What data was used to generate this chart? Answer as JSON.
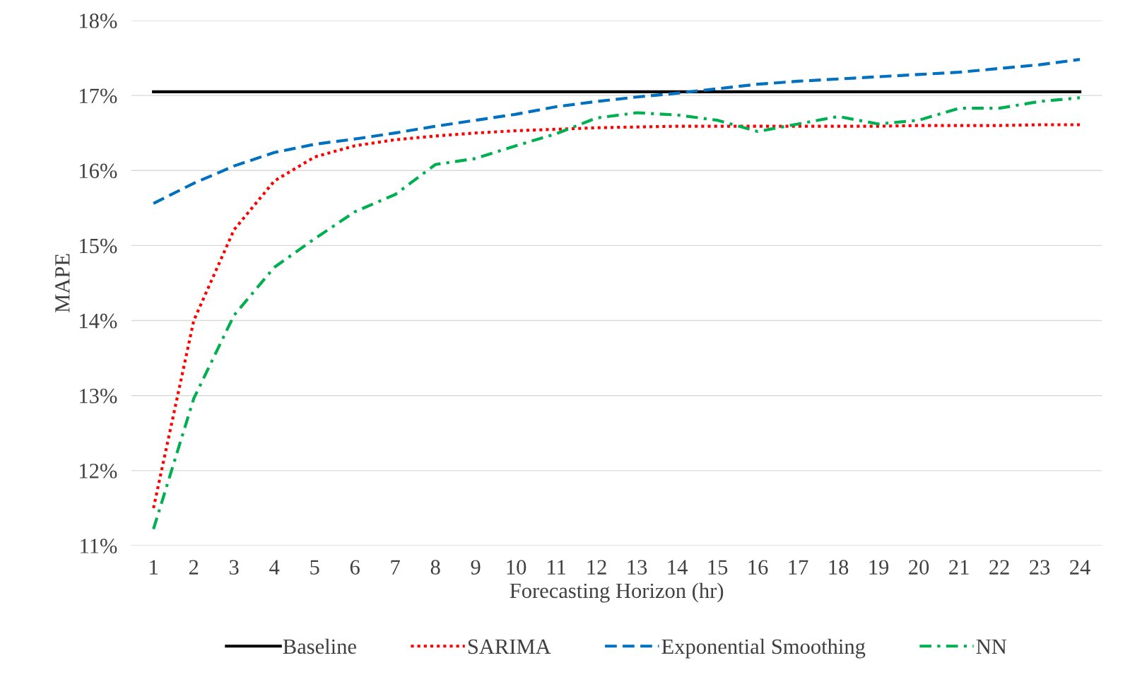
{
  "chart_data": {
    "type": "line",
    "xlabel": "Forecasting Horizon (hr)",
    "ylabel": "MAPE",
    "categories": [
      "1",
      "2",
      "3",
      "4",
      "5",
      "6",
      "7",
      "8",
      "9",
      "10",
      "11",
      "12",
      "13",
      "14",
      "15",
      "16",
      "17",
      "18",
      "19",
      "20",
      "21",
      "22",
      "23",
      "24"
    ],
    "ylim": [
      11,
      18
    ],
    "yticks": [
      {
        "value": 11,
        "label": "11%"
      },
      {
        "value": 12,
        "label": "12%"
      },
      {
        "value": 13,
        "label": "13%"
      },
      {
        "value": 14,
        "label": "14%"
      },
      {
        "value": 15,
        "label": "15%"
      },
      {
        "value": 16,
        "label": "16%"
      },
      {
        "value": 17,
        "label": "17%"
      },
      {
        "value": 18,
        "label": "18%"
      }
    ],
    "grid": "y",
    "legend": "bottom",
    "marker": "none",
    "series": [
      {
        "name": "Baseline",
        "color": "#000000",
        "line_style": "solid",
        "values": [
          17.05,
          17.05,
          17.05,
          17.05,
          17.05,
          17.05,
          17.05,
          17.05,
          17.05,
          17.05,
          17.05,
          17.05,
          17.05,
          17.05,
          17.05,
          17.05,
          17.05,
          17.05,
          17.05,
          17.05,
          17.05,
          17.05,
          17.05,
          17.05
        ]
      },
      {
        "name": "SARIMA",
        "color": "#ff0000",
        "line_style": "dotted",
        "values": [
          11.5,
          14.0,
          15.21,
          15.86,
          16.18,
          16.33,
          16.41,
          16.46,
          16.5,
          16.53,
          16.55,
          16.57,
          16.58,
          16.59,
          16.59,
          16.59,
          16.59,
          16.59,
          16.59,
          16.6,
          16.6,
          16.6,
          16.61,
          16.61
        ]
      },
      {
        "name": "Exponential Smoothing",
        "color": "#0070c0",
        "line_style": "dashed",
        "values": [
          15.56,
          15.83,
          16.06,
          16.24,
          16.35,
          16.42,
          16.5,
          16.59,
          16.67,
          16.75,
          16.85,
          16.92,
          16.98,
          17.03,
          17.09,
          17.15,
          17.19,
          17.22,
          17.25,
          17.28,
          17.31,
          17.36,
          17.41,
          17.48
        ]
      },
      {
        "name": "NN",
        "color": "#00b050",
        "line_style": "dashdot",
        "values": [
          11.22,
          12.96,
          14.07,
          14.71,
          15.09,
          15.45,
          15.68,
          16.08,
          16.16,
          16.33,
          16.49,
          16.7,
          16.77,
          16.74,
          16.67,
          16.52,
          16.62,
          16.72,
          16.62,
          16.67,
          16.83,
          16.83,
          16.92,
          16.97
        ]
      }
    ]
  }
}
